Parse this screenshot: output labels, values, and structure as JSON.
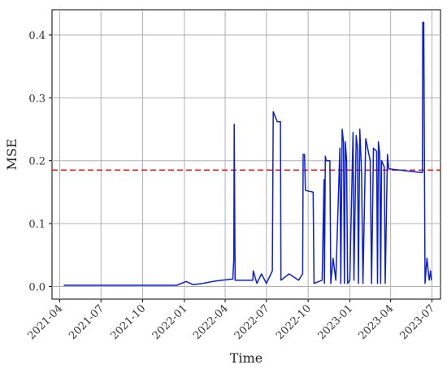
{
  "chart_data": {
    "type": "line",
    "title": "",
    "xlabel": "Time",
    "ylabel": "MSE",
    "x_ticks": [
      "2021-04",
      "2021-07",
      "2021-10",
      "2022-01",
      "2022-04",
      "2022-07",
      "2022-10",
      "2023-01",
      "2023-04",
      "2023-07"
    ],
    "y_ticks": [
      "0.0",
      "0.1",
      "0.2",
      "0.3",
      "0.4"
    ],
    "xlim": [
      "2021-03-15",
      "2023-07-20"
    ],
    "ylim": [
      -0.02,
      0.44
    ],
    "grid": true,
    "threshold": {
      "value": 0.185,
      "style": "dashed",
      "color": "#e81e1e"
    },
    "series": [
      {
        "color": "#0a1fd6",
        "points": [
          [
            "2021-04-10",
            0.002
          ],
          [
            "2021-06-20",
            0.002
          ],
          [
            "2021-09-01",
            0.002
          ],
          [
            "2021-12-15",
            0.002
          ],
          [
            "2022-01-05",
            0.008
          ],
          [
            "2022-01-20",
            0.003
          ],
          [
            "2022-02-10",
            0.005
          ],
          [
            "2022-03-05",
            0.008
          ],
          [
            "2022-03-25",
            0.01
          ],
          [
            "2022-04-18",
            0.012
          ],
          [
            "2022-04-20",
            0.045
          ],
          [
            "2022-04-21",
            0.258
          ],
          [
            "2022-04-23",
            0.01
          ],
          [
            "2022-06-01",
            0.01
          ],
          [
            "2022-06-02",
            0.025
          ],
          [
            "2022-06-10",
            0.005
          ],
          [
            "2022-06-20",
            0.02
          ],
          [
            "2022-07-01",
            0.005
          ],
          [
            "2022-07-14",
            0.025
          ],
          [
            "2022-07-16",
            0.278
          ],
          [
            "2022-07-25",
            0.262
          ],
          [
            "2022-08-01",
            0.262
          ],
          [
            "2022-08-02",
            0.01
          ],
          [
            "2022-08-20",
            0.02
          ],
          [
            "2022-09-10",
            0.01
          ],
          [
            "2022-09-19",
            0.02
          ],
          [
            "2022-09-20",
            0.21
          ],
          [
            "2022-09-23",
            0.21
          ],
          [
            "2022-09-25",
            0.153
          ],
          [
            "2022-10-12",
            0.15
          ],
          [
            "2022-10-14",
            0.005
          ],
          [
            "2022-11-01",
            0.01
          ],
          [
            "2022-11-05",
            0.17
          ],
          [
            "2022-11-06",
            0.005
          ],
          [
            "2022-11-08",
            0.207
          ],
          [
            "2022-11-10",
            0.2
          ],
          [
            "2022-11-18",
            0.2
          ],
          [
            "2022-11-20",
            0.005
          ],
          [
            "2022-11-25",
            0.045
          ],
          [
            "2022-12-01",
            0.01
          ],
          [
            "2022-12-10",
            0.22
          ],
          [
            "2022-12-12",
            0.005
          ],
          [
            "2022-12-15",
            0.25
          ],
          [
            "2022-12-18",
            0.23
          ],
          [
            "2022-12-20",
            0.005
          ],
          [
            "2022-12-22",
            0.23
          ],
          [
            "2022-12-25",
            0.2
          ],
          [
            "2022-12-27",
            0.005
          ],
          [
            "2023-01-01",
            0.01
          ],
          [
            "2023-01-08",
            0.245
          ],
          [
            "2023-01-10",
            0.01
          ],
          [
            "2023-01-15",
            0.24
          ],
          [
            "2023-01-18",
            0.22
          ],
          [
            "2023-01-20",
            0.005
          ],
          [
            "2023-01-23",
            0.25
          ],
          [
            "2023-01-27",
            0.18
          ],
          [
            "2023-01-30",
            0.005
          ],
          [
            "2023-02-05",
            0.235
          ],
          [
            "2023-02-15",
            0.2
          ],
          [
            "2023-02-18",
            0.005
          ],
          [
            "2023-02-22",
            0.22
          ],
          [
            "2023-03-01",
            0.215
          ],
          [
            "2023-03-03",
            0.005
          ],
          [
            "2023-03-05",
            0.23
          ],
          [
            "2023-03-08",
            0.21
          ],
          [
            "2023-03-10",
            0.005
          ],
          [
            "2023-03-12",
            0.2
          ],
          [
            "2023-03-18",
            0.19
          ],
          [
            "2023-03-20",
            0.005
          ],
          [
            "2023-03-25",
            0.21
          ],
          [
            "2023-03-28",
            0.187
          ],
          [
            "2023-06-10",
            0.181
          ],
          [
            "2023-06-11",
            0.42
          ],
          [
            "2023-06-13",
            0.42
          ],
          [
            "2023-06-15",
            0.13
          ],
          [
            "2023-06-16",
            0.005
          ],
          [
            "2023-06-20",
            0.045
          ],
          [
            "2023-06-25",
            0.01
          ],
          [
            "2023-06-28",
            0.025
          ],
          [
            "2023-06-30",
            0.01
          ]
        ]
      }
    ]
  }
}
